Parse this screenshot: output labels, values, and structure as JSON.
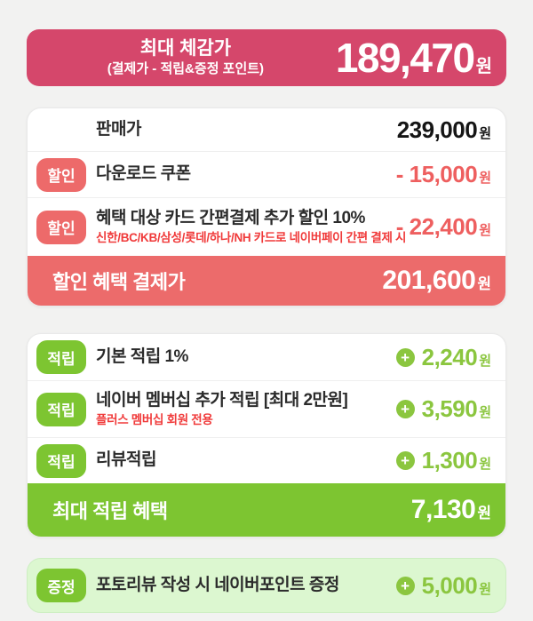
{
  "colors": {
    "page_bg": "#f2f2f1",
    "header_pink": "#d5476b",
    "coral": "#ed6a6a",
    "alert_red": "#f03a3a",
    "green": "#7dc531",
    "green_value": "#8bc63f",
    "light_green_bg": "#dcf7d0"
  },
  "currency": "원",
  "icons": {
    "plus": "+"
  },
  "header": {
    "title": "최대 체감가",
    "subtitle": "(결제가 - 적립&증정 포인트)",
    "amount": "189,470"
  },
  "price_card": {
    "rows": [
      {
        "label": "판매가",
        "value": "239,000"
      },
      {
        "badge": "할인",
        "label": "다운로드 쿠폰",
        "value": "- 15,000"
      },
      {
        "badge": "할인",
        "label": "혜택 대상 카드 간편결제 추가 할인 10%",
        "sublabel": "신한/BC/KB/삼성/롯데/하나/NH 카드로 네이버페이 간편 결제 시",
        "value": "- 22,400"
      }
    ],
    "footer": {
      "label": "할인 혜택 결제가",
      "value": "201,600"
    }
  },
  "reward_card": {
    "rows": [
      {
        "badge": "적립",
        "label": "기본 적립 1%",
        "value": "2,240"
      },
      {
        "badge": "적립",
        "label": "네이버 멤버십 추가 적립 [최대 2만원]",
        "sublabel": "플러스 멤버십 회원 전용",
        "value": "3,590"
      },
      {
        "badge": "적립",
        "label": "리뷰적립",
        "value": "1,300"
      }
    ],
    "footer": {
      "label": "최대 적립 혜택",
      "value": "7,130"
    }
  },
  "gift_card": {
    "badge": "증정",
    "label": "포토리뷰 작성 시 네이버포인트 증정",
    "value": "5,000"
  }
}
